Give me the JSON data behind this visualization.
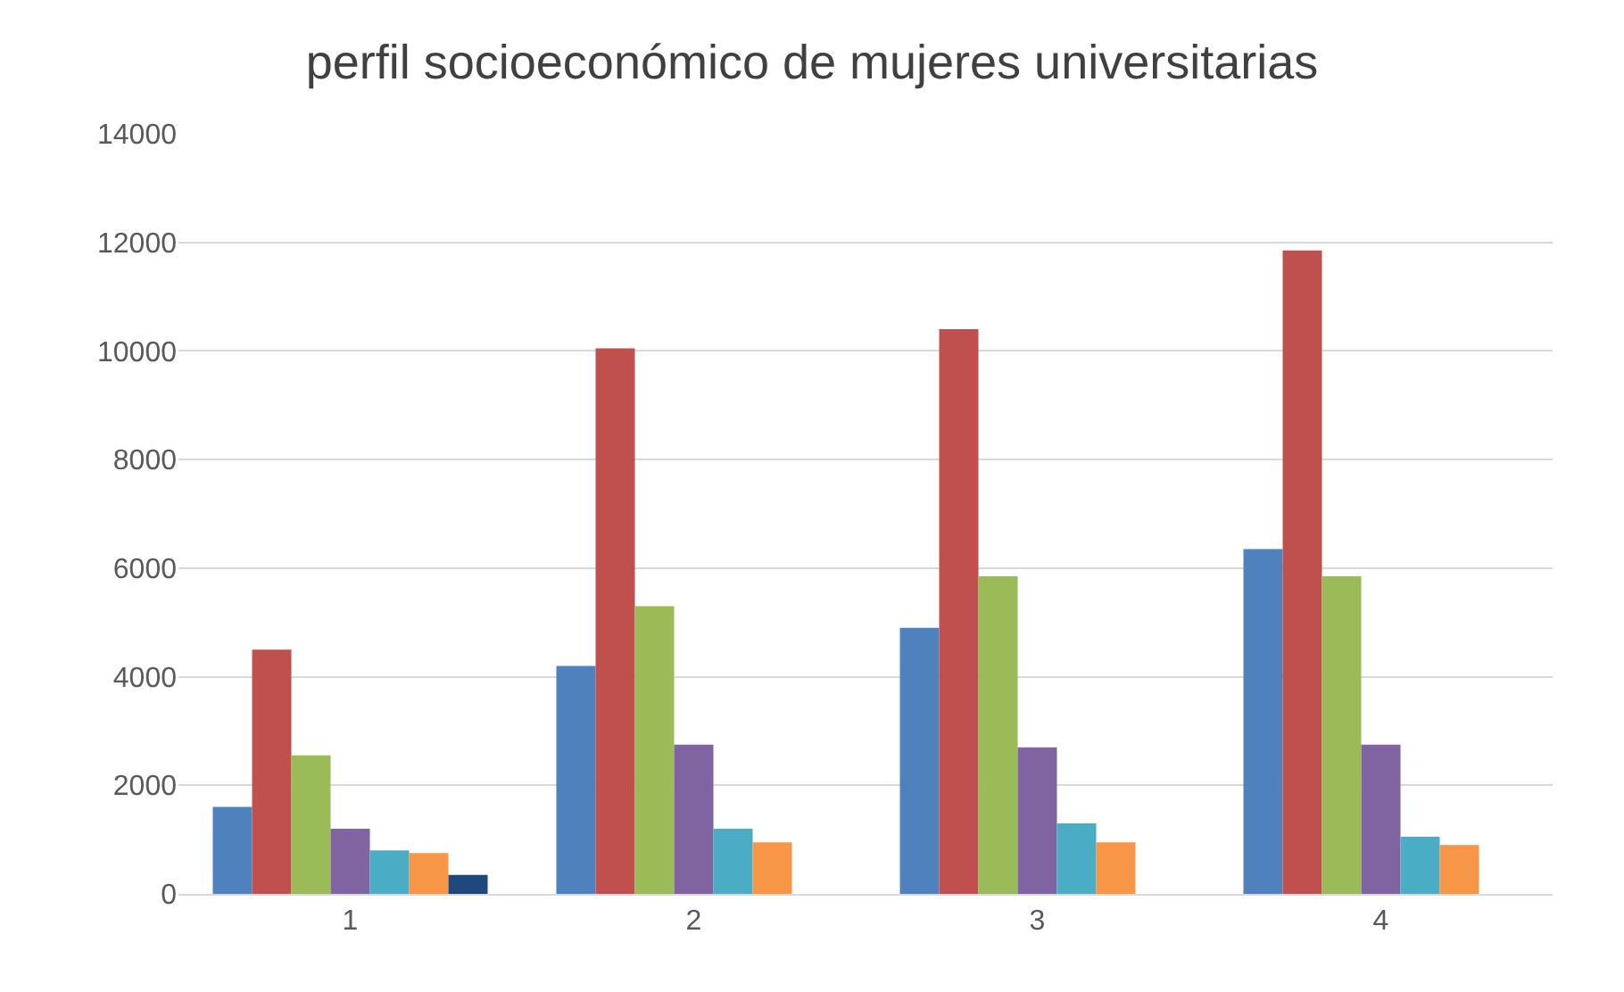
{
  "chart_data": {
    "type": "bar",
    "title": "perfil socioeconómico de mujeres universitarias",
    "categories": [
      "1",
      "2",
      "3",
      "4"
    ],
    "series": [
      {
        "color": "#4f81bd",
        "values": [
          1600,
          4200,
          4900,
          6350
        ]
      },
      {
        "color": "#c0504d",
        "values": [
          4500,
          10050,
          10400,
          11850
        ]
      },
      {
        "color": "#9bbb59",
        "values": [
          2550,
          5300,
          5850,
          5850
        ]
      },
      {
        "color": "#8064a2",
        "values": [
          1200,
          2750,
          2700,
          2750
        ]
      },
      {
        "color": "#4bacc6",
        "values": [
          800,
          1200,
          1300,
          1050
        ]
      },
      {
        "color": "#f79646",
        "values": [
          750,
          950,
          950,
          900
        ]
      },
      {
        "color": "#1f497d",
        "values": [
          350,
          null,
          null,
          null
        ]
      }
    ],
    "ylim": [
      0,
      14000
    ],
    "yticks": [
      0,
      2000,
      4000,
      6000,
      8000,
      10000,
      12000,
      14000
    ],
    "grid": "y"
  }
}
